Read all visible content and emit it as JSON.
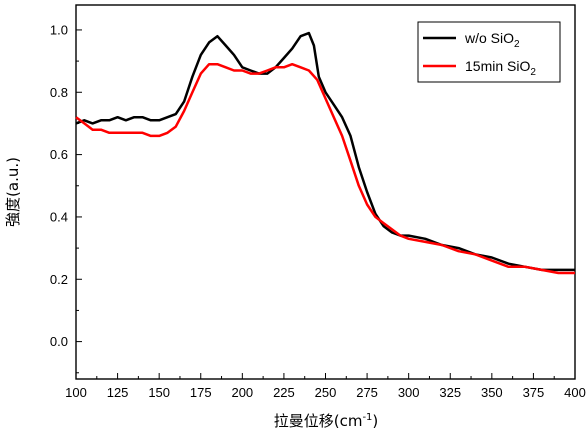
{
  "chart_data": {
    "type": "line",
    "xlabel": "拉曼位移",
    "xlabel_unit": {
      "base": "(cm",
      "sup": "-1",
      "close": ")"
    },
    "ylabel": "強度(a.u.)",
    "xlim": [
      100,
      400
    ],
    "ylim": [
      -0.12,
      1.08
    ],
    "x_ticks": [
      100,
      125,
      150,
      175,
      200,
      225,
      250,
      275,
      300,
      325,
      350,
      375,
      400
    ],
    "x_tick_labels": [
      "100",
      "125",
      "150",
      "175",
      "200",
      "225",
      "250",
      "275",
      "300",
      "325",
      "350",
      "375",
      "400"
    ],
    "y_ticks": [
      0.0,
      0.2,
      0.4,
      0.6,
      0.8,
      1.0
    ],
    "y_tick_labels": [
      "0.0",
      "0.2",
      "0.4",
      "0.6",
      "0.8",
      "1.0"
    ],
    "grid": false,
    "legend": "top-right",
    "series": [
      {
        "name": "w/o SiO",
        "name_sub": "2",
        "color": "#000000",
        "x": [
          100,
          105,
          110,
          115,
          120,
          125,
          130,
          135,
          140,
          145,
          150,
          155,
          160,
          165,
          170,
          175,
          180,
          185,
          190,
          195,
          200,
          205,
          210,
          215,
          220,
          225,
          230,
          235,
          240,
          243,
          246,
          250,
          255,
          260,
          265,
          270,
          275,
          280,
          285,
          290,
          295,
          300,
          310,
          320,
          330,
          340,
          350,
          360,
          370,
          380,
          390,
          400
        ],
        "y": [
          0.7,
          0.71,
          0.7,
          0.71,
          0.71,
          0.72,
          0.71,
          0.72,
          0.72,
          0.71,
          0.71,
          0.72,
          0.73,
          0.77,
          0.85,
          0.92,
          0.96,
          0.98,
          0.95,
          0.92,
          0.88,
          0.87,
          0.86,
          0.86,
          0.88,
          0.91,
          0.94,
          0.98,
          0.99,
          0.95,
          0.85,
          0.8,
          0.76,
          0.72,
          0.66,
          0.56,
          0.48,
          0.41,
          0.37,
          0.35,
          0.34,
          0.34,
          0.33,
          0.31,
          0.3,
          0.28,
          0.27,
          0.25,
          0.24,
          0.23,
          0.23,
          0.23
        ]
      },
      {
        "name": "15min SiO",
        "name_sub": "2",
        "color": "#ff0000",
        "x": [
          100,
          105,
          110,
          115,
          120,
          125,
          130,
          135,
          140,
          145,
          150,
          155,
          160,
          165,
          170,
          175,
          180,
          185,
          190,
          195,
          200,
          205,
          210,
          215,
          220,
          225,
          230,
          235,
          240,
          245,
          250,
          255,
          260,
          265,
          270,
          275,
          280,
          285,
          290,
          295,
          300,
          310,
          320,
          330,
          340,
          350,
          360,
          370,
          380,
          390,
          400
        ],
        "y": [
          0.72,
          0.7,
          0.68,
          0.68,
          0.67,
          0.67,
          0.67,
          0.67,
          0.67,
          0.66,
          0.66,
          0.67,
          0.69,
          0.74,
          0.8,
          0.86,
          0.89,
          0.89,
          0.88,
          0.87,
          0.87,
          0.86,
          0.86,
          0.87,
          0.88,
          0.88,
          0.89,
          0.88,
          0.87,
          0.84,
          0.78,
          0.72,
          0.66,
          0.58,
          0.5,
          0.44,
          0.4,
          0.38,
          0.36,
          0.34,
          0.33,
          0.32,
          0.31,
          0.29,
          0.28,
          0.26,
          0.24,
          0.24,
          0.23,
          0.22,
          0.22
        ]
      }
    ]
  }
}
